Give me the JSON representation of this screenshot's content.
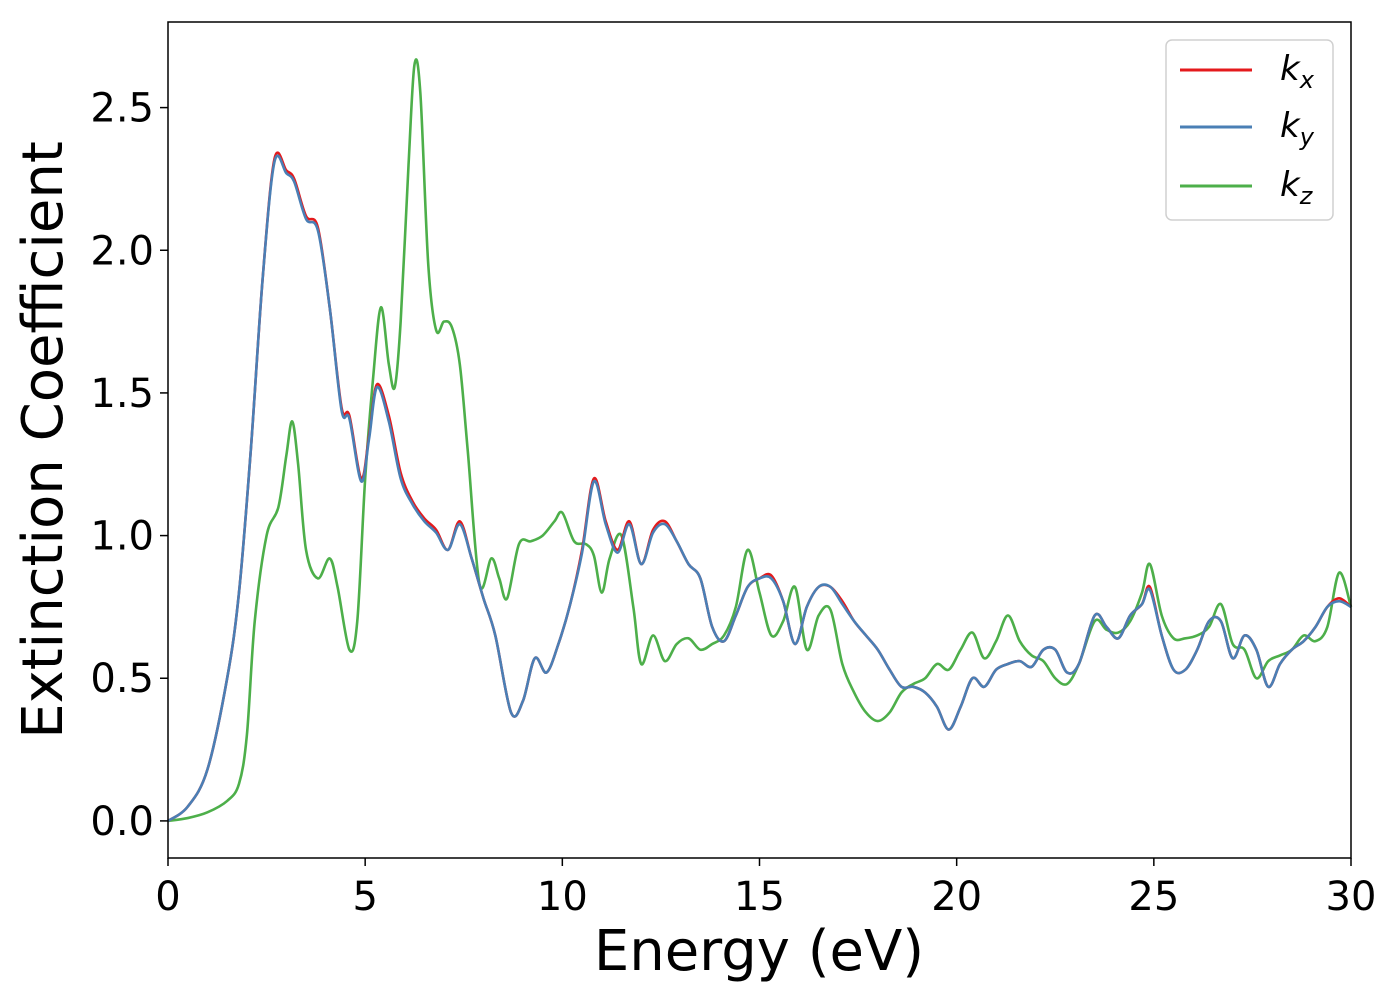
{
  "chart_data": {
    "type": "line",
    "xlabel": "Energy (eV)",
    "ylabel": "Extinction Coefficient",
    "xlim": [
      0,
      30
    ],
    "ylim": [
      -0.13,
      2.8
    ],
    "xticks": [
      0,
      5,
      10,
      15,
      20,
      25,
      30
    ],
    "yticks": [
      0.0,
      0.5,
      1.0,
      1.5,
      2.0,
      2.5
    ],
    "xtick_labels": [
      "0",
      "5",
      "10",
      "15",
      "20",
      "25",
      "30"
    ],
    "ytick_labels": [
      "0.0",
      "0.5",
      "1.0",
      "1.5",
      "2.0",
      "2.5"
    ],
    "grid": false,
    "legend_position": "top-right",
    "series": [
      {
        "name": "k_x",
        "label_main": "k",
        "label_sub": "x",
        "color": "#e41a1c",
        "x": [
          0,
          0.5,
          1.0,
          1.5,
          1.8,
          2.1,
          2.4,
          2.7,
          3.0,
          3.2,
          3.5,
          3.8,
          4.1,
          4.4,
          4.6,
          4.9,
          5.1,
          5.3,
          5.6,
          5.9,
          6.2,
          6.5,
          6.8,
          7.1,
          7.4,
          7.7,
          8.0,
          8.3,
          8.7,
          9.0,
          9.3,
          9.6,
          9.9,
          10.2,
          10.5,
          10.8,
          11.1,
          11.4,
          11.7,
          12.0,
          12.3,
          12.6,
          12.9,
          13.2,
          13.5,
          13.8,
          14.1,
          14.4,
          14.7,
          15.0,
          15.3,
          15.6,
          15.9,
          16.2,
          16.5,
          16.8,
          17.1,
          17.4,
          17.7,
          18.0,
          18.3,
          18.6,
          18.9,
          19.2,
          19.5,
          19.8,
          20.1,
          20.4,
          20.7,
          21.0,
          21.3,
          21.6,
          21.9,
          22.2,
          22.5,
          22.8,
          23.1,
          23.5,
          23.8,
          24.1,
          24.4,
          24.7,
          24.9,
          25.2,
          25.5,
          25.8,
          26.1,
          26.4,
          26.7,
          27.0,
          27.3,
          27.6,
          27.9,
          28.2,
          28.5,
          28.8,
          29.1,
          29.4,
          29.7,
          30.0
        ],
        "y": [
          0.0,
          0.05,
          0.18,
          0.5,
          0.8,
          1.3,
          1.9,
          2.32,
          2.28,
          2.25,
          2.12,
          2.08,
          1.8,
          1.45,
          1.42,
          1.2,
          1.35,
          1.53,
          1.42,
          1.22,
          1.12,
          1.06,
          1.02,
          0.95,
          1.05,
          0.92,
          0.78,
          0.65,
          0.38,
          0.42,
          0.57,
          0.52,
          0.62,
          0.76,
          0.95,
          1.2,
          1.05,
          0.95,
          1.05,
          0.9,
          1.02,
          1.05,
          0.98,
          0.9,
          0.85,
          0.68,
          0.63,
          0.72,
          0.82,
          0.85,
          0.86,
          0.77,
          0.62,
          0.75,
          0.82,
          0.82,
          0.77,
          0.7,
          0.65,
          0.6,
          0.53,
          0.47,
          0.47,
          0.45,
          0.4,
          0.32,
          0.4,
          0.5,
          0.47,
          0.53,
          0.55,
          0.56,
          0.54,
          0.6,
          0.6,
          0.52,
          0.55,
          0.72,
          0.68,
          0.64,
          0.72,
          0.76,
          0.82,
          0.65,
          0.53,
          0.53,
          0.6,
          0.7,
          0.7,
          0.57,
          0.65,
          0.6,
          0.47,
          0.55,
          0.6,
          0.63,
          0.68,
          0.75,
          0.78,
          0.75
        ]
      },
      {
        "name": "k_y",
        "label_main": "k",
        "label_sub": "y",
        "color": "#4a7fb5",
        "x": [
          0,
          0.5,
          1.0,
          1.5,
          1.8,
          2.1,
          2.4,
          2.7,
          3.0,
          3.2,
          3.5,
          3.8,
          4.1,
          4.4,
          4.6,
          4.9,
          5.1,
          5.3,
          5.6,
          5.9,
          6.2,
          6.5,
          6.8,
          7.1,
          7.4,
          7.7,
          8.0,
          8.3,
          8.7,
          9.0,
          9.3,
          9.6,
          9.9,
          10.2,
          10.5,
          10.8,
          11.1,
          11.4,
          11.7,
          12.0,
          12.3,
          12.6,
          12.9,
          13.2,
          13.5,
          13.8,
          14.1,
          14.4,
          14.7,
          15.0,
          15.3,
          15.6,
          15.9,
          16.2,
          16.5,
          16.8,
          17.1,
          17.4,
          17.7,
          18.0,
          18.3,
          18.6,
          18.9,
          19.2,
          19.5,
          19.8,
          20.1,
          20.4,
          20.7,
          21.0,
          21.3,
          21.6,
          21.9,
          22.2,
          22.5,
          22.8,
          23.1,
          23.5,
          23.8,
          24.1,
          24.4,
          24.7,
          24.9,
          25.2,
          25.5,
          25.8,
          26.1,
          26.4,
          26.7,
          27.0,
          27.3,
          27.6,
          27.9,
          28.2,
          28.5,
          28.8,
          29.1,
          29.4,
          29.7,
          30.0
        ],
        "y": [
          0.0,
          0.05,
          0.18,
          0.5,
          0.8,
          1.3,
          1.9,
          2.31,
          2.27,
          2.24,
          2.11,
          2.07,
          1.8,
          1.44,
          1.41,
          1.19,
          1.34,
          1.52,
          1.4,
          1.2,
          1.11,
          1.05,
          1.01,
          0.95,
          1.04,
          0.92,
          0.78,
          0.65,
          0.38,
          0.42,
          0.57,
          0.52,
          0.62,
          0.76,
          0.94,
          1.19,
          1.04,
          0.94,
          1.04,
          0.9,
          1.01,
          1.04,
          0.98,
          0.9,
          0.85,
          0.68,
          0.63,
          0.72,
          0.82,
          0.85,
          0.85,
          0.77,
          0.62,
          0.75,
          0.82,
          0.82,
          0.76,
          0.7,
          0.65,
          0.6,
          0.53,
          0.47,
          0.47,
          0.45,
          0.4,
          0.32,
          0.4,
          0.5,
          0.47,
          0.53,
          0.55,
          0.56,
          0.54,
          0.6,
          0.6,
          0.52,
          0.55,
          0.72,
          0.68,
          0.64,
          0.72,
          0.76,
          0.81,
          0.65,
          0.53,
          0.53,
          0.6,
          0.7,
          0.7,
          0.57,
          0.65,
          0.6,
          0.47,
          0.55,
          0.6,
          0.63,
          0.68,
          0.75,
          0.77,
          0.75
        ]
      },
      {
        "name": "k_z",
        "label_main": "k",
        "label_sub": "z",
        "color": "#4daf4a",
        "x": [
          0,
          0.5,
          1.0,
          1.5,
          1.8,
          2.0,
          2.2,
          2.5,
          2.8,
          3.0,
          3.15,
          3.3,
          3.5,
          3.8,
          4.1,
          4.3,
          4.6,
          4.8,
          5.0,
          5.2,
          5.4,
          5.6,
          5.75,
          5.9,
          6.1,
          6.25,
          6.4,
          6.6,
          6.8,
          7.0,
          7.2,
          7.4,
          7.6,
          7.9,
          8.2,
          8.4,
          8.6,
          8.9,
          9.2,
          9.5,
          9.8,
          10.0,
          10.3,
          10.6,
          10.8,
          11.0,
          11.2,
          11.5,
          11.8,
          12.0,
          12.3,
          12.6,
          12.9,
          13.2,
          13.5,
          13.8,
          14.1,
          14.4,
          14.7,
          15.0,
          15.3,
          15.6,
          15.9,
          16.2,
          16.5,
          16.8,
          17.1,
          17.4,
          17.7,
          18.0,
          18.3,
          18.6,
          18.9,
          19.2,
          19.5,
          19.8,
          20.1,
          20.4,
          20.7,
          21.0,
          21.3,
          21.6,
          21.9,
          22.2,
          22.5,
          22.8,
          23.1,
          23.5,
          23.8,
          24.1,
          24.4,
          24.7,
          24.9,
          25.2,
          25.5,
          25.8,
          26.1,
          26.4,
          26.7,
          27.0,
          27.3,
          27.6,
          27.9,
          28.2,
          28.5,
          28.8,
          29.1,
          29.4,
          29.7,
          30.0
        ],
        "y": [
          0.0,
          0.01,
          0.03,
          0.07,
          0.13,
          0.3,
          0.7,
          1.0,
          1.1,
          1.28,
          1.4,
          1.25,
          0.95,
          0.85,
          0.92,
          0.82,
          0.6,
          0.7,
          1.2,
          1.55,
          1.8,
          1.6,
          1.52,
          1.75,
          2.3,
          2.65,
          2.55,
          1.95,
          1.72,
          1.75,
          1.73,
          1.6,
          1.3,
          0.83,
          0.92,
          0.85,
          0.78,
          0.97,
          0.98,
          1.0,
          1.05,
          1.08,
          0.98,
          0.97,
          0.93,
          0.8,
          0.92,
          1.0,
          0.75,
          0.55,
          0.65,
          0.56,
          0.62,
          0.64,
          0.6,
          0.62,
          0.65,
          0.75,
          0.95,
          0.8,
          0.65,
          0.7,
          0.82,
          0.6,
          0.72,
          0.74,
          0.55,
          0.45,
          0.38,
          0.35,
          0.38,
          0.45,
          0.48,
          0.5,
          0.55,
          0.53,
          0.6,
          0.66,
          0.57,
          0.63,
          0.72,
          0.63,
          0.58,
          0.56,
          0.5,
          0.48,
          0.55,
          0.7,
          0.67,
          0.66,
          0.7,
          0.8,
          0.9,
          0.72,
          0.64,
          0.64,
          0.65,
          0.68,
          0.76,
          0.62,
          0.6,
          0.5,
          0.56,
          0.58,
          0.6,
          0.65,
          0.63,
          0.68,
          0.87,
          0.75
        ]
      }
    ]
  }
}
